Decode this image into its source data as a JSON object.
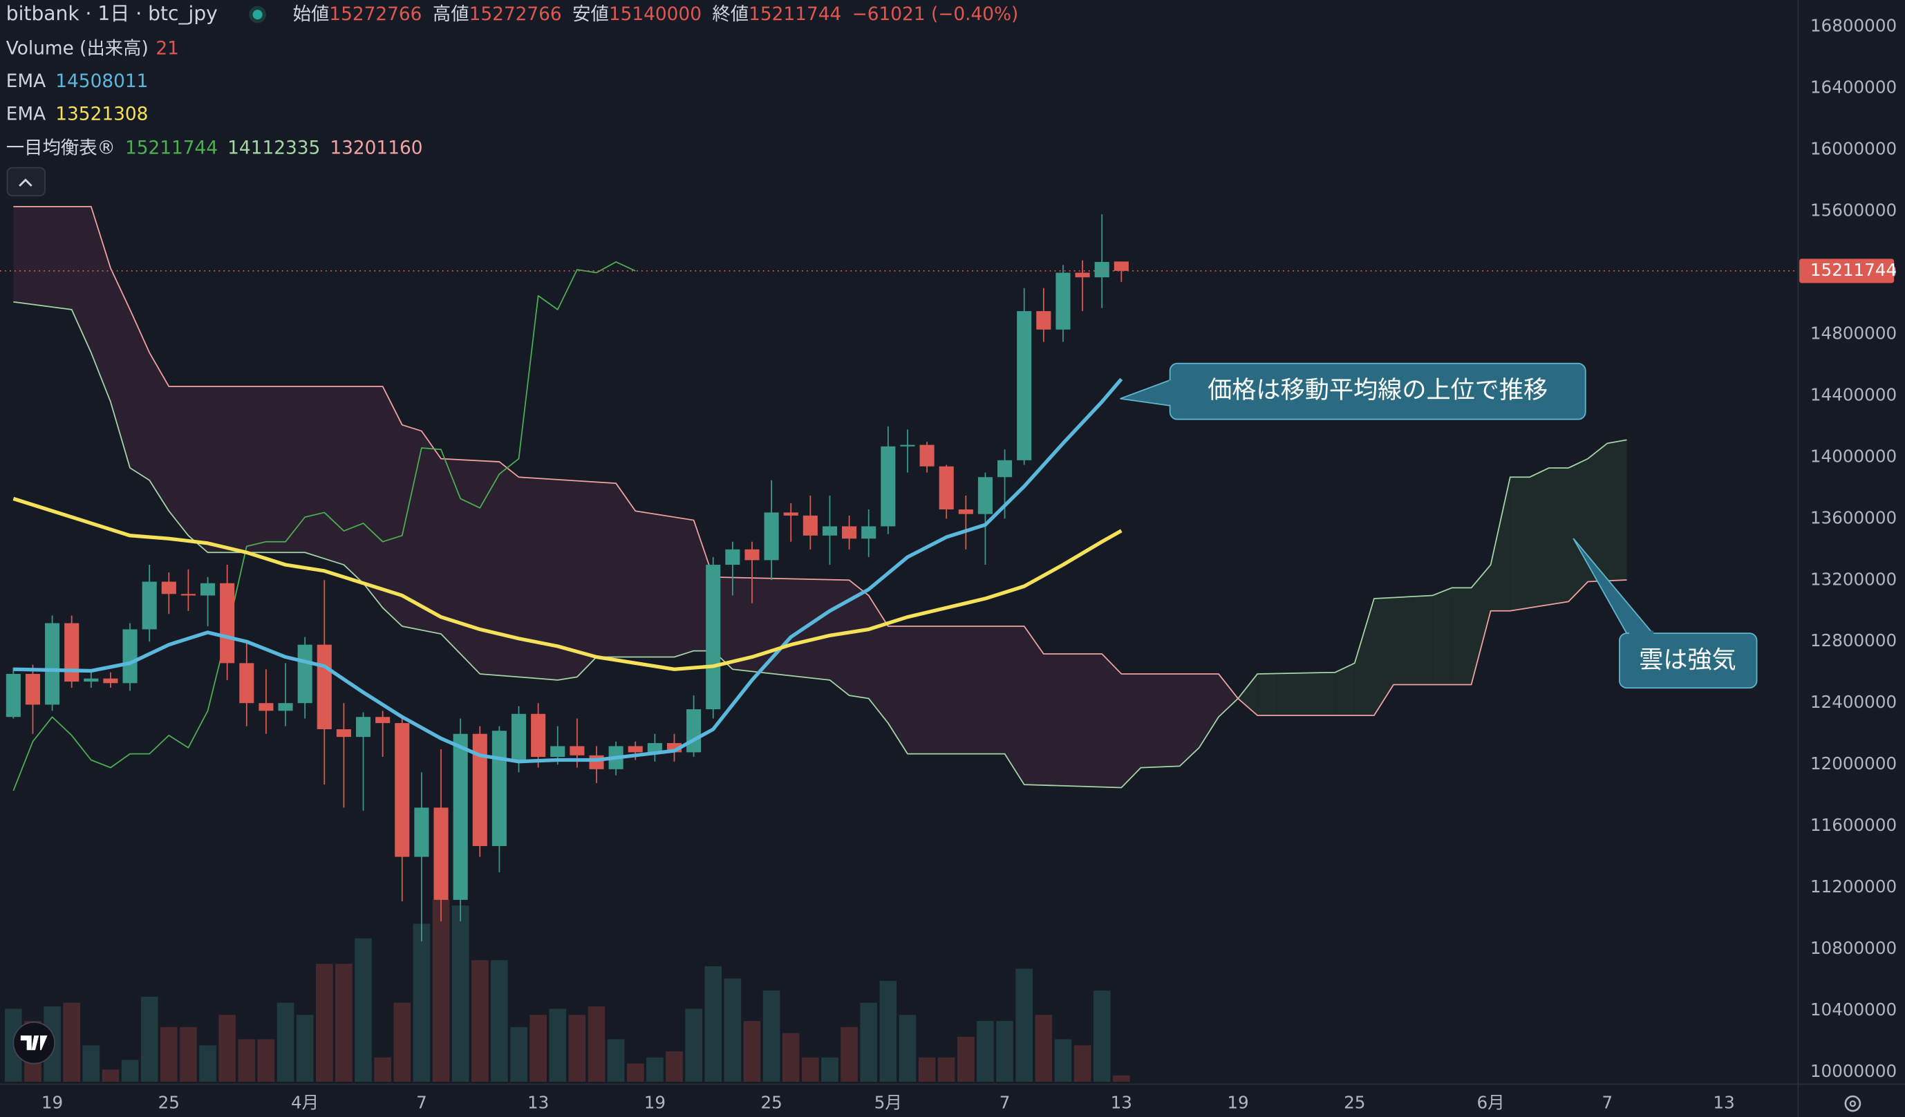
{
  "chart_data": {
    "type": "candlestick",
    "title": "bitbank · 1日 · btc_jpy",
    "ohlc_labels": [
      "始値",
      "高値",
      "安値",
      "終値"
    ],
    "change": "−61021 (−0.40%)",
    "xlim": [
      -2.6875,
      89.8125
    ],
    "xticks": [
      {
        "value": 0,
        "label": "19"
      },
      {
        "value": 6,
        "label": "25"
      },
      {
        "value": 13,
        "label": "4月"
      },
      {
        "value": 19,
        "label": "7"
      },
      {
        "value": 25,
        "label": "13"
      },
      {
        "value": 31,
        "label": "19"
      },
      {
        "value": 37,
        "label": "25"
      },
      {
        "value": 43,
        "label": "5月"
      },
      {
        "value": 49,
        "label": "7"
      },
      {
        "value": 55,
        "label": "13"
      },
      {
        "value": 61,
        "label": "19"
      },
      {
        "value": 67,
        "label": "25"
      },
      {
        "value": 74,
        "label": "6月"
      },
      {
        "value": 80,
        "label": "7"
      },
      {
        "value": 86,
        "label": "13"
      }
    ],
    "ylim": [
      9900000,
      17000000
    ],
    "yticks": [
      10000000,
      10400000,
      10800000,
      11200000,
      11600000,
      12000000,
      12400000,
      12800000,
      13200000,
      13600000,
      14000000,
      14400000,
      14800000,
      15200000,
      15600000,
      16000000,
      16400000,
      16800000
    ],
    "up_color": "#3a9a8c",
    "down_color": "#dc5a52",
    "x": [
      -2,
      -1,
      0,
      1,
      2,
      3,
      4,
      5,
      6,
      7,
      8,
      9,
      10,
      11,
      12,
      13,
      14,
      15,
      16,
      17,
      18,
      19,
      20,
      21,
      22,
      23,
      24,
      25,
      26,
      27,
      28,
      29,
      30,
      31,
      32,
      33,
      34,
      35,
      36,
      37,
      38,
      39,
      40,
      41,
      42,
      43,
      44,
      45,
      46,
      47,
      48,
      49,
      50,
      51,
      52,
      53,
      54,
      55
    ],
    "open": [
      12310000,
      12590000,
      12390000,
      12920000,
      12540000,
      12560000,
      12530000,
      12880000,
      13190000,
      13110000,
      13100000,
      13180000,
      12660000,
      12400000,
      12350000,
      12400000,
      12780000,
      12230000,
      12180000,
      12310000,
      12270000,
      11400000,
      11720000,
      11120000,
      12200000,
      11470000,
      12020000,
      12330000,
      12050000,
      12120000,
      12060000,
      11970000,
      12120000,
      12080000,
      12140000,
      12080000,
      12360000,
      13300000,
      13400000,
      13330000,
      13640000,
      13620000,
      13490000,
      13550000,
      13470000,
      13550000,
      14070000,
      14080000,
      13940000,
      13660000,
      13630000,
      13870000,
      13980000,
      14950000,
      14830000,
      15200000,
      15170000,
      15272766
    ],
    "high": [
      12630000,
      12650000,
      12970000,
      12970000,
      12600000,
      12600000,
      12920000,
      13300000,
      13250000,
      13270000,
      13220000,
      13300000,
      12800000,
      12620000,
      12660000,
      12830000,
      13200000,
      12400000,
      12340000,
      12350000,
      12300000,
      11950000,
      12100000,
      12300000,
      12250000,
      12250000,
      12380000,
      12400000,
      12250000,
      12300000,
      12120000,
      12150000,
      12150000,
      12200000,
      12200000,
      12450000,
      13350000,
      13450000,
      13450000,
      13850000,
      13700000,
      13750000,
      13750000,
      13620000,
      13660000,
      14200000,
      14180000,
      14100000,
      13950000,
      13750000,
      13900000,
      14050000,
      15100000,
      15100000,
      15250000,
      15280000,
      15580000,
      15272766
    ],
    "low": [
      12300000,
      12200000,
      12350000,
      12500000,
      12500000,
      12500000,
      12480000,
      12800000,
      12980000,
      13000000,
      12900000,
      12550000,
      12250000,
      12200000,
      12250000,
      12300000,
      11870000,
      11720000,
      11700000,
      12050000,
      11110000,
      10850000,
      10980000,
      10980000,
      11400000,
      11300000,
      11950000,
      11980000,
      12000000,
      11980000,
      11880000,
      11930000,
      12030000,
      12020000,
      12020000,
      12050000,
      12300000,
      13100000,
      13050000,
      13200000,
      13450000,
      13400000,
      13300000,
      13400000,
      13350000,
      13500000,
      13900000,
      13900000,
      13600000,
      13400000,
      13300000,
      13600000,
      13950000,
      14750000,
      14750000,
      14950000,
      14970000,
      15140000
    ],
    "close": [
      12590000,
      12390000,
      12920000,
      12540000,
      12560000,
      12530000,
      12880000,
      13190000,
      13110000,
      13100000,
      13180000,
      12660000,
      12400000,
      12350000,
      12400000,
      12780000,
      12230000,
      12180000,
      12310000,
      12270000,
      11400000,
      11720000,
      11120000,
      12200000,
      11470000,
      12220000,
      12330000,
      12050000,
      12120000,
      12060000,
      11970000,
      12120000,
      12080000,
      12140000,
      12080000,
      12360000,
      13300000,
      13400000,
      13330000,
      13640000,
      13620000,
      13490000,
      13550000,
      13470000,
      13550000,
      14070000,
      14080000,
      13940000,
      13660000,
      13630000,
      13870000,
      13980000,
      14950000,
      14830000,
      15200000,
      15170000,
      15270000,
      15211744
    ],
    "volume": {
      "name": "Volume (出来高)",
      "up_color": "#1f3b3f",
      "down_color": "#47282d",
      "values": [
        240,
        200,
        248,
        260,
        120,
        40,
        72,
        280,
        180,
        180,
        120,
        220,
        140,
        140,
        260,
        220,
        388,
        388,
        472,
        80,
        260,
        520,
        600,
        580,
        400,
        400,
        180,
        220,
        240,
        220,
        248,
        140,
        60,
        80,
        100,
        240,
        380,
        340,
        200,
        300,
        160,
        80,
        80,
        180,
        260,
        332,
        220,
        80,
        80,
        148,
        200,
        200,
        372,
        220,
        140,
        120,
        300,
        21
      ]
    },
    "series": [
      {
        "name": "EMA",
        "color": "#5ab8dc",
        "x": [
          -2,
          2,
          4,
          6,
          8,
          10,
          12,
          14,
          16,
          18,
          20,
          22,
          24,
          26,
          28,
          30,
          32,
          34,
          36,
          38,
          40,
          42,
          44,
          46,
          48,
          50,
          52,
          54,
          55
        ],
        "values": [
          12620000,
          12610000,
          12660000,
          12780000,
          12860000,
          12800000,
          12700000,
          12640000,
          12470000,
          12310000,
          12170000,
          12060000,
          12020000,
          12030000,
          12030000,
          12060000,
          12090000,
          12230000,
          12550000,
          12830000,
          13000000,
          13140000,
          13350000,
          13480000,
          13560000,
          13810000,
          14090000,
          14360000,
          14508011
        ]
      },
      {
        "name": "EMA",
        "color": "#f5e15a",
        "x": [
          -2,
          2,
          4,
          6,
          8,
          10,
          12,
          14,
          16,
          18,
          20,
          22,
          24,
          26,
          28,
          30,
          32,
          34,
          36,
          38,
          40,
          42,
          44,
          46,
          48,
          50,
          52,
          54,
          55
        ],
        "values": [
          13730000,
          13570000,
          13490000,
          13470000,
          13440000,
          13380000,
          13300000,
          13260000,
          13180000,
          13100000,
          12960000,
          12880000,
          12820000,
          12770000,
          12700000,
          12660000,
          12620000,
          12640000,
          12700000,
          12780000,
          12840000,
          12880000,
          12960000,
          13020000,
          13080000,
          13160000,
          13300000,
          13450000,
          13521308
        ]
      }
    ],
    "ichimoku": {
      "name": "一目均衡表®",
      "bull_fill": "#1e2b29",
      "bear_fill": "#2b2030",
      "lagging": {
        "color": "#4caf50",
        "x": [
          -2,
          -1,
          0,
          1,
          2,
          3,
          4,
          5,
          6,
          7,
          8,
          9,
          10,
          11,
          12,
          13,
          14,
          15,
          16,
          17,
          18,
          19,
          20,
          21,
          22,
          23,
          24,
          25,
          26,
          27,
          28,
          29,
          30
        ],
        "values": [
          11830000,
          12150000,
          12310000,
          12190000,
          12030000,
          11980000,
          12070000,
          12070000,
          12190000,
          12110000,
          12350000,
          12860000,
          13420000,
          13450000,
          13450000,
          13610000,
          13640000,
          13520000,
          13570000,
          13450000,
          13490000,
          14060000,
          14050000,
          13730000,
          13670000,
          13890000,
          13990000,
          15050000,
          14960000,
          15220000,
          15200000,
          15270000,
          15211744
        ]
      },
      "lead_a": {
        "color": "#a5d6a7",
        "x": [
          -2,
          1,
          2,
          3,
          4,
          5,
          6,
          7,
          8,
          13,
          14,
          15,
          16,
          17,
          18,
          20,
          21,
          22,
          26,
          27,
          28,
          32,
          33,
          34,
          35,
          40,
          41,
          42,
          43,
          44,
          49,
          50,
          55,
          56,
          58,
          59,
          60,
          61,
          62,
          66,
          67,
          68,
          71,
          72,
          73,
          74,
          75,
          76,
          77,
          78,
          79,
          80,
          81
        ],
        "values": [
          15010000,
          14960000,
          14680000,
          14360000,
          13930000,
          13850000,
          13650000,
          13490000,
          13380000,
          13380000,
          13340000,
          13300000,
          13180000,
          13020000,
          12900000,
          12850000,
          12720000,
          12590000,
          12550000,
          12570000,
          12700000,
          12700000,
          12740000,
          12740000,
          12620000,
          12550000,
          12450000,
          12430000,
          12270000,
          12070000,
          12070000,
          11870000,
          11850000,
          11980000,
          11990000,
          12110000,
          12310000,
          12430000,
          12590000,
          12600000,
          12660000,
          13080000,
          13100000,
          13150000,
          13150000,
          13300000,
          13870000,
          13870000,
          13930000,
          13930000,
          13990000,
          14090000,
          14112335
        ]
      },
      "lead_b": {
        "color": "#f4a2a2",
        "x": [
          -2,
          2,
          3,
          4,
          5,
          6,
          17,
          18,
          19,
          20,
          23,
          24,
          29,
          30,
          33,
          34,
          41,
          42,
          43,
          50,
          51,
          54,
          55,
          60,
          61,
          62,
          68,
          69,
          73,
          74,
          75,
          78,
          79,
          81
        ],
        "values": [
          15630000,
          15630000,
          15230000,
          14960000,
          14680000,
          14460000,
          14460000,
          14210000,
          14170000,
          13990000,
          13970000,
          13870000,
          13830000,
          13650000,
          13590000,
          13220000,
          13200000,
          13100000,
          12900000,
          12900000,
          12720000,
          12720000,
          12590000,
          12590000,
          12430000,
          12320000,
          12320000,
          12520000,
          12520000,
          13000000,
          13000000,
          13060000,
          13190000,
          13201160
        ]
      }
    },
    "annotations": [
      {
        "text": "価格は移動平均線の上位で推移"
      },
      {
        "text": "雲は強気"
      }
    ]
  }
}
